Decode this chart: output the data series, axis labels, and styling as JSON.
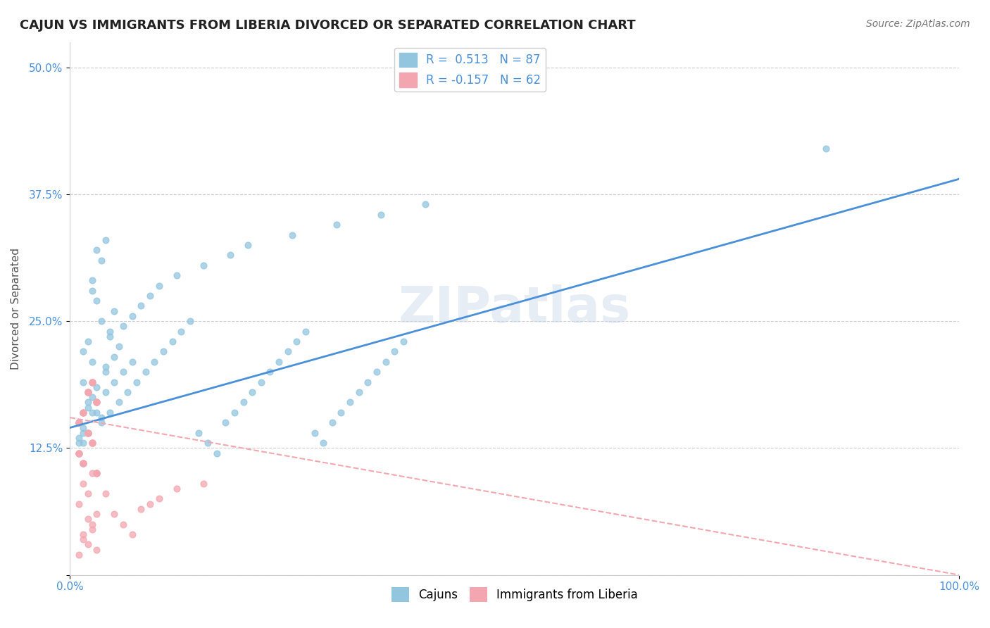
{
  "title": "CAJUN VS IMMIGRANTS FROM LIBERIA DIVORCED OR SEPARATED CORRELATION CHART",
  "source": "Source: ZipAtlas.com",
  "ylabel": "Divorced or Separated",
  "xlabel": "",
  "xlim": [
    0.0,
    1.0
  ],
  "ylim": [
    0.0,
    0.525
  ],
  "yticks": [
    0.0,
    0.125,
    0.25,
    0.375,
    0.5
  ],
  "ytick_labels": [
    "",
    "12.5%",
    "25.0%",
    "37.5%",
    "50.0%"
  ],
  "xtick_labels": [
    "0.0%",
    "100.0%"
  ],
  "cajun_color": "#92C5DE",
  "liberia_color": "#F4A6B0",
  "cajun_line_color": "#4A90D9",
  "liberia_line_color": "#F4A6B0",
  "cajun_R": 0.513,
  "cajun_N": 87,
  "liberia_R": -0.157,
  "liberia_N": 62,
  "watermark": "ZIPatlas",
  "legend_cajun": "Cajuns",
  "legend_liberia": "Immigrants from Liberia",
  "cajun_scatter_x": [
    0.02,
    0.015,
    0.025,
    0.03,
    0.01,
    0.04,
    0.035,
    0.02,
    0.015,
    0.025,
    0.03,
    0.045,
    0.05,
    0.015,
    0.02,
    0.03,
    0.025,
    0.035,
    0.04,
    0.01,
    0.02,
    0.025,
    0.03,
    0.015,
    0.01,
    0.035,
    0.04,
    0.05,
    0.055,
    0.045,
    0.06,
    0.07,
    0.08,
    0.09,
    0.1,
    0.12,
    0.15,
    0.18,
    0.2,
    0.25,
    0.3,
    0.35,
    0.4,
    0.85,
    0.025,
    0.02,
    0.015,
    0.03,
    0.04,
    0.05,
    0.06,
    0.07,
    0.035,
    0.045,
    0.055,
    0.065,
    0.075,
    0.085,
    0.095,
    0.105,
    0.115,
    0.125,
    0.135,
    0.145,
    0.155,
    0.165,
    0.175,
    0.185,
    0.195,
    0.205,
    0.215,
    0.225,
    0.235,
    0.245,
    0.255,
    0.265,
    0.275,
    0.285,
    0.295,
    0.305,
    0.315,
    0.325,
    0.335,
    0.345,
    0.355,
    0.365,
    0.375
  ],
  "cajun_scatter_y": [
    0.18,
    0.22,
    0.28,
    0.32,
    0.15,
    0.2,
    0.25,
    0.17,
    0.19,
    0.21,
    0.16,
    0.24,
    0.26,
    0.14,
    0.23,
    0.27,
    0.29,
    0.31,
    0.33,
    0.13,
    0.165,
    0.175,
    0.185,
    0.145,
    0.135,
    0.155,
    0.205,
    0.215,
    0.225,
    0.235,
    0.245,
    0.255,
    0.265,
    0.275,
    0.285,
    0.295,
    0.305,
    0.315,
    0.325,
    0.335,
    0.345,
    0.355,
    0.365,
    0.42,
    0.16,
    0.14,
    0.13,
    0.17,
    0.18,
    0.19,
    0.2,
    0.21,
    0.15,
    0.16,
    0.17,
    0.18,
    0.19,
    0.2,
    0.21,
    0.22,
    0.23,
    0.24,
    0.25,
    0.14,
    0.13,
    0.12,
    0.15,
    0.16,
    0.17,
    0.18,
    0.19,
    0.2,
    0.21,
    0.22,
    0.23,
    0.24,
    0.14,
    0.13,
    0.15,
    0.16,
    0.17,
    0.18,
    0.19,
    0.2,
    0.21,
    0.22,
    0.23
  ],
  "liberia_scatter_x": [
    0.01,
    0.02,
    0.015,
    0.025,
    0.03,
    0.01,
    0.02,
    0.015,
    0.025,
    0.03,
    0.01,
    0.02,
    0.015,
    0.025,
    0.03,
    0.01,
    0.02,
    0.015,
    0.025,
    0.03,
    0.01,
    0.02,
    0.015,
    0.025,
    0.03,
    0.01,
    0.02,
    0.015,
    0.025,
    0.03,
    0.01,
    0.02,
    0.015,
    0.025,
    0.03,
    0.01,
    0.02,
    0.015,
    0.025,
    0.03,
    0.04,
    0.05,
    0.06,
    0.07,
    0.08,
    0.09,
    0.1,
    0.12,
    0.15,
    0.02,
    0.025,
    0.015,
    0.03,
    0.01,
    0.02,
    0.015,
    0.025,
    0.03,
    0.01,
    0.02,
    0.015,
    0.025
  ],
  "liberia_scatter_y": [
    0.15,
    0.14,
    0.16,
    0.13,
    0.17,
    0.12,
    0.18,
    0.11,
    0.19,
    0.1,
    0.15,
    0.14,
    0.16,
    0.13,
    0.17,
    0.12,
    0.18,
    0.11,
    0.19,
    0.1,
    0.15,
    0.14,
    0.16,
    0.13,
    0.17,
    0.12,
    0.18,
    0.11,
    0.19,
    0.1,
    0.15,
    0.14,
    0.16,
    0.13,
    0.17,
    0.12,
    0.18,
    0.11,
    0.19,
    0.1,
    0.08,
    0.06,
    0.05,
    0.04,
    0.065,
    0.07,
    0.075,
    0.085,
    0.09,
    0.055,
    0.045,
    0.035,
    0.025,
    0.02,
    0.03,
    0.04,
    0.05,
    0.06,
    0.07,
    0.08,
    0.09,
    0.1
  ],
  "cajun_trend_x": [
    0.0,
    1.0
  ],
  "cajun_trend_y": [
    0.145,
    0.39
  ],
  "liberia_trend_x": [
    0.0,
    1.0
  ],
  "liberia_trend_y": [
    0.155,
    0.0
  ],
  "background_color": "#ffffff",
  "grid_color": "#cccccc"
}
